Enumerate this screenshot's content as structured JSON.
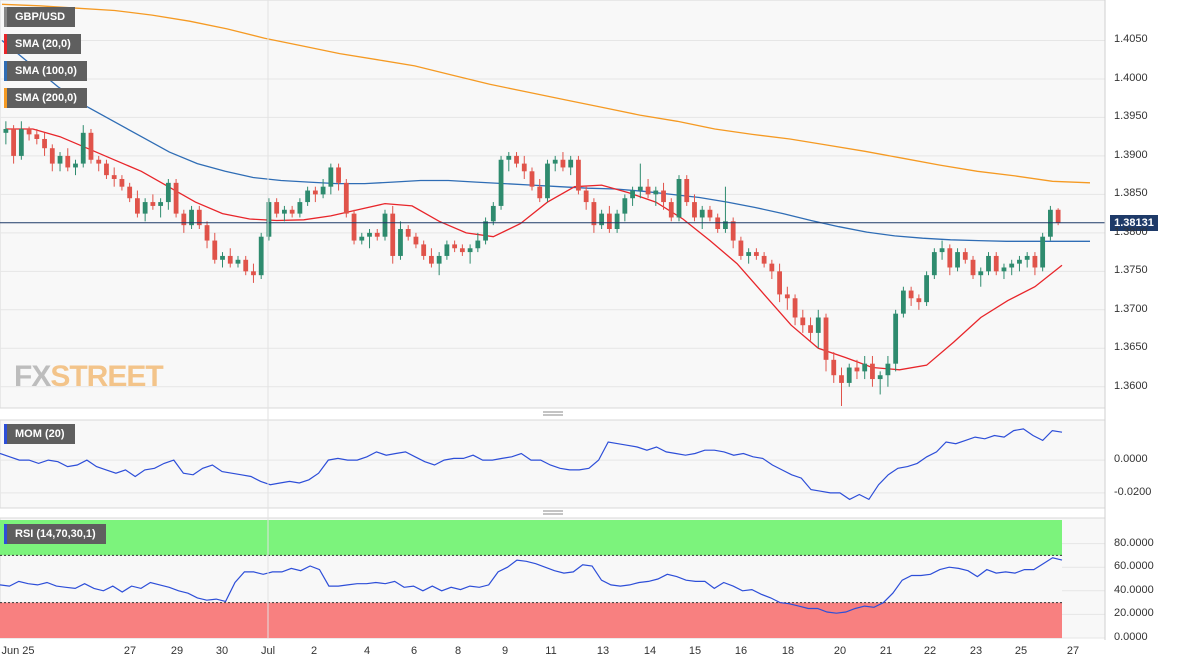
{
  "colors": {
    "bull": "#2e8b6e",
    "bear": "#e0534a",
    "sma20": "#e8252a",
    "sma100": "#2f6db5",
    "sma200": "#f59a23",
    "mom": "#2d4ed8",
    "rsi": "#2d4ed8",
    "overbought": "#7cf37c",
    "oversold": "#f88080",
    "priceLine": "#1e3a68"
  },
  "legend": {
    "symbol": "GBP/USD",
    "sma20": "SMA (20,0)",
    "sma100": "SMA (100,0)",
    "sma200": "SMA (200,0)",
    "mom": "MOM (20)",
    "rsi": "RSI (14,70,30,1)"
  },
  "watermark": {
    "part1": "FX",
    "part2": "STREET"
  },
  "last_price_label": "1.38131",
  "chart_data": [
    {
      "type": "candlestick",
      "title": "GBP/USD",
      "ylim": [
        1.3575,
        1.41
      ],
      "yticks": [
        "1.4050",
        "1.4000",
        "1.3950",
        "1.3900",
        "1.3850",
        "1.3800",
        "1.3750",
        "1.3700",
        "1.3650",
        "1.3600"
      ],
      "last_price": 1.38131,
      "x_labels": [
        "Jun 25",
        "27",
        "29",
        "30",
        "Jul",
        "2",
        "4",
        "6",
        "8",
        "9",
        "11",
        "13",
        "14",
        "15",
        "16",
        "18",
        "20",
        "21",
        "22",
        "23",
        "25",
        "27"
      ],
      "candles": [
        [
          1.393,
          1.3945,
          1.3915,
          1.3935
        ],
        [
          1.3935,
          1.394,
          1.389,
          1.39
        ],
        [
          1.39,
          1.3945,
          1.3895,
          1.3935
        ],
        [
          1.3935,
          1.3938,
          1.392,
          1.3928
        ],
        [
          1.3928,
          1.3935,
          1.3915,
          1.3922
        ],
        [
          1.3922,
          1.393,
          1.39,
          1.391
        ],
        [
          1.391,
          1.3915,
          1.388,
          1.389
        ],
        [
          1.389,
          1.3905,
          1.388,
          1.39
        ],
        [
          1.39,
          1.391,
          1.388,
          1.3885
        ],
        [
          1.3885,
          1.3895,
          1.3875,
          1.389
        ],
        [
          1.389,
          1.394,
          1.3885,
          1.393
        ],
        [
          1.393,
          1.3935,
          1.389,
          1.3895
        ],
        [
          1.3895,
          1.39,
          1.388,
          1.389
        ],
        [
          1.389,
          1.3895,
          1.387,
          1.3875
        ],
        [
          1.3875,
          1.3885,
          1.386,
          1.387
        ],
        [
          1.387,
          1.3875,
          1.3855,
          1.386
        ],
        [
          1.386,
          1.3865,
          1.384,
          1.3845
        ],
        [
          1.3845,
          1.3855,
          1.382,
          1.3825
        ],
        [
          1.3825,
          1.3845,
          1.3815,
          1.384
        ],
        [
          1.384,
          1.385,
          1.383,
          1.3835
        ],
        [
          1.3835,
          1.3845,
          1.382,
          1.384
        ],
        [
          1.384,
          1.387,
          1.383,
          1.3865
        ],
        [
          1.3865,
          1.387,
          1.382,
          1.3825
        ],
        [
          1.3825,
          1.383,
          1.38,
          1.381
        ],
        [
          1.381,
          1.3835,
          1.3805,
          1.383
        ],
        [
          1.383,
          1.3835,
          1.3805,
          1.381
        ],
        [
          1.381,
          1.3815,
          1.378,
          1.379
        ],
        [
          1.379,
          1.38,
          1.376,
          1.3765
        ],
        [
          1.3765,
          1.3775,
          1.3755,
          1.377
        ],
        [
          1.377,
          1.378,
          1.3755,
          1.376
        ],
        [
          1.376,
          1.377,
          1.3755,
          1.3765
        ],
        [
          1.3765,
          1.377,
          1.3745,
          1.375
        ],
        [
          1.375,
          1.376,
          1.3735,
          1.3745
        ],
        [
          1.3745,
          1.38,
          1.374,
          1.3795
        ],
        [
          1.3795,
          1.3845,
          1.379,
          1.384
        ],
        [
          1.384,
          1.3845,
          1.382,
          1.3825
        ],
        [
          1.3825,
          1.3835,
          1.3815,
          1.383
        ],
        [
          1.383,
          1.3835,
          1.382,
          1.3825
        ],
        [
          1.3825,
          1.3845,
          1.382,
          1.384
        ],
        [
          1.384,
          1.386,
          1.3835,
          1.3855
        ],
        [
          1.3855,
          1.386,
          1.384,
          1.385
        ],
        [
          1.385,
          1.387,
          1.3845,
          1.386
        ],
        [
          1.386,
          1.389,
          1.385,
          1.3885
        ],
        [
          1.3885,
          1.389,
          1.3855,
          1.3865
        ],
        [
          1.3865,
          1.387,
          1.382,
          1.3825
        ],
        [
          1.3825,
          1.383,
          1.3785,
          1.379
        ],
        [
          1.379,
          1.38,
          1.3785,
          1.3795
        ],
        [
          1.3795,
          1.3805,
          1.378,
          1.38
        ],
        [
          1.38,
          1.3805,
          1.379,
          1.3795
        ],
        [
          1.3795,
          1.383,
          1.379,
          1.3825
        ],
        [
          1.3825,
          1.3835,
          1.376,
          1.377
        ],
        [
          1.377,
          1.3815,
          1.3765,
          1.3805
        ],
        [
          1.3805,
          1.381,
          1.379,
          1.3795
        ],
        [
          1.3795,
          1.38,
          1.378,
          1.3785
        ],
        [
          1.3785,
          1.379,
          1.3765,
          1.377
        ],
        [
          1.377,
          1.378,
          1.3755,
          1.376
        ],
        [
          1.376,
          1.3775,
          1.3745,
          1.377
        ],
        [
          1.377,
          1.379,
          1.3765,
          1.3785
        ],
        [
          1.3785,
          1.379,
          1.3775,
          1.378
        ],
        [
          1.378,
          1.3785,
          1.377,
          1.3775
        ],
        [
          1.3775,
          1.3785,
          1.376,
          1.378
        ],
        [
          1.378,
          1.38,
          1.3775,
          1.379
        ],
        [
          1.379,
          1.382,
          1.3785,
          1.3815
        ],
        [
          1.3815,
          1.384,
          1.381,
          1.3835
        ],
        [
          1.3835,
          1.39,
          1.383,
          1.3895
        ],
        [
          1.3895,
          1.3905,
          1.388,
          1.39
        ],
        [
          1.39,
          1.3905,
          1.3885,
          1.389
        ],
        [
          1.389,
          1.39,
          1.387,
          1.388
        ],
        [
          1.388,
          1.3885,
          1.3855,
          1.386
        ],
        [
          1.386,
          1.387,
          1.384,
          1.3845
        ],
        [
          1.3845,
          1.3895,
          1.384,
          1.389
        ],
        [
          1.389,
          1.39,
          1.388,
          1.3895
        ],
        [
          1.3895,
          1.3905,
          1.388,
          1.3885
        ],
        [
          1.3885,
          1.39,
          1.3875,
          1.3895
        ],
        [
          1.3895,
          1.39,
          1.385,
          1.3855
        ],
        [
          1.3855,
          1.386,
          1.383,
          1.384
        ],
        [
          1.384,
          1.3845,
          1.38,
          1.381
        ],
        [
          1.381,
          1.383,
          1.3805,
          1.3825
        ],
        [
          1.3825,
          1.3835,
          1.38,
          1.3805
        ],
        [
          1.3805,
          1.383,
          1.38,
          1.3825
        ],
        [
          1.3825,
          1.385,
          1.3815,
          1.3845
        ],
        [
          1.3845,
          1.386,
          1.3835,
          1.3855
        ],
        [
          1.3855,
          1.389,
          1.3845,
          1.386
        ],
        [
          1.386,
          1.387,
          1.3845,
          1.385
        ],
        [
          1.385,
          1.386,
          1.3835,
          1.3855
        ],
        [
          1.3855,
          1.3865,
          1.383,
          1.384
        ],
        [
          1.384,
          1.3845,
          1.3815,
          1.382
        ],
        [
          1.382,
          1.3875,
          1.3815,
          1.387
        ],
        [
          1.387,
          1.3875,
          1.3835,
          1.384
        ],
        [
          1.384,
          1.385,
          1.3815,
          1.382
        ],
        [
          1.382,
          1.3835,
          1.3805,
          1.383
        ],
        [
          1.383,
          1.3835,
          1.3815,
          1.382
        ],
        [
          1.382,
          1.3825,
          1.38,
          1.3805
        ],
        [
          1.3805,
          1.386,
          1.38,
          1.3815
        ],
        [
          1.3815,
          1.382,
          1.378,
          1.379
        ],
        [
          1.379,
          1.3795,
          1.3765,
          1.377
        ],
        [
          1.377,
          1.378,
          1.376,
          1.3775
        ],
        [
          1.3775,
          1.378,
          1.3765,
          1.377
        ],
        [
          1.377,
          1.3775,
          1.3755,
          1.376
        ],
        [
          1.376,
          1.3765,
          1.374,
          1.375
        ],
        [
          1.375,
          1.376,
          1.371,
          1.372
        ],
        [
          1.372,
          1.373,
          1.37,
          1.3715
        ],
        [
          1.3715,
          1.372,
          1.368,
          1.369
        ],
        [
          1.369,
          1.37,
          1.367,
          1.368
        ],
        [
          1.368,
          1.369,
          1.366,
          1.367
        ],
        [
          1.367,
          1.37,
          1.365,
          1.369
        ],
        [
          1.369,
          1.3695,
          1.362,
          1.3635
        ],
        [
          1.3635,
          1.3645,
          1.3605,
          1.3615
        ],
        [
          1.3615,
          1.3625,
          1.3575,
          1.3605
        ],
        [
          1.3605,
          1.363,
          1.36,
          1.3625
        ],
        [
          1.3625,
          1.3635,
          1.361,
          1.362
        ],
        [
          1.362,
          1.364,
          1.361,
          1.363
        ],
        [
          1.363,
          1.364,
          1.36,
          1.361
        ],
        [
          1.361,
          1.362,
          1.359,
          1.3615
        ],
        [
          1.3615,
          1.364,
          1.36,
          1.363
        ],
        [
          1.363,
          1.37,
          1.362,
          1.3695
        ],
        [
          1.3695,
          1.373,
          1.369,
          1.3725
        ],
        [
          1.3725,
          1.373,
          1.3705,
          1.3715
        ],
        [
          1.3715,
          1.372,
          1.37,
          1.371
        ],
        [
          1.371,
          1.375,
          1.3705,
          1.3745
        ],
        [
          1.3745,
          1.378,
          1.374,
          1.3775
        ],
        [
          1.3775,
          1.379,
          1.3765,
          1.378
        ],
        [
          1.378,
          1.3785,
          1.3745,
          1.3755
        ],
        [
          1.3755,
          1.378,
          1.375,
          1.3775
        ],
        [
          1.3775,
          1.378,
          1.376,
          1.3765
        ],
        [
          1.3765,
          1.377,
          1.374,
          1.3745
        ],
        [
          1.3745,
          1.3755,
          1.373,
          1.375
        ],
        [
          1.375,
          1.3775,
          1.3745,
          1.377
        ],
        [
          1.377,
          1.3775,
          1.3745,
          1.375
        ],
        [
          1.375,
          1.376,
          1.374,
          1.3755
        ],
        [
          1.3755,
          1.3765,
          1.3745,
          1.376
        ],
        [
          1.376,
          1.377,
          1.375,
          1.3765
        ],
        [
          1.3765,
          1.3775,
          1.3755,
          1.377
        ],
        [
          1.377,
          1.3775,
          1.3745,
          1.3755
        ],
        [
          1.3755,
          1.38,
          1.375,
          1.3795
        ],
        [
          1.3795,
          1.3835,
          1.379,
          1.383
        ],
        [
          1.383,
          1.3832,
          1.381,
          1.3813
        ]
      ],
      "sma20": [
        1.3935,
        1.3935,
        1.3925,
        1.391,
        1.3895,
        1.388,
        1.386,
        1.384,
        1.3825,
        1.3818,
        1.3816,
        1.3817,
        1.3822,
        1.383,
        1.3838,
        1.3835,
        1.3815,
        1.38,
        1.3795,
        1.3812,
        1.384,
        1.386,
        1.3862,
        1.3852,
        1.384,
        1.3818,
        1.379,
        1.376,
        1.372,
        1.368,
        1.365,
        1.3638,
        1.3625,
        1.3622,
        1.3628,
        1.3658,
        1.369,
        1.3712,
        1.373,
        1.3758
      ],
      "sma100": [
        1.405,
        1.402,
        1.399,
        1.3965,
        1.3945,
        1.3925,
        1.3905,
        1.389,
        1.388,
        1.3872,
        1.3868,
        1.3866,
        1.3864,
        1.3864,
        1.3866,
        1.3868,
        1.3868,
        1.3866,
        1.3864,
        1.3862,
        1.386,
        1.3858,
        1.3857,
        1.3854,
        1.385,
        1.3846,
        1.384,
        1.3833,
        1.3825,
        1.3816,
        1.3808,
        1.3801,
        1.3796,
        1.3793,
        1.3791,
        1.379,
        1.3789,
        1.3789,
        1.3789,
        1.3789
      ],
      "sma200": [
        1.4097,
        1.4095,
        1.4092,
        1.4089,
        1.4083,
        1.4075,
        1.4065,
        1.4053,
        1.4043,
        1.4033,
        1.4025,
        1.4017,
        1.4005,
        1.3993,
        1.3983,
        1.3973,
        1.3963,
        1.3953,
        1.3945,
        1.3935,
        1.3928,
        1.3922,
        1.3914,
        1.3906,
        1.3897,
        1.3888,
        1.388,
        1.3874,
        1.3867,
        1.3865
      ]
    },
    {
      "type": "line",
      "title": "MOM (20)",
      "ylim": [
        -0.028,
        0.022
      ],
      "yticks": [
        "0.0000",
        "-0.0200"
      ],
      "values": [
        0.004,
        0.002,
        0.0,
        0.0,
        -0.002,
        0.0,
        -0.001,
        -0.004,
        -0.003,
        0.0,
        -0.004,
        -0.006,
        -0.008,
        -0.006,
        -0.01,
        -0.006,
        -0.005,
        -0.002,
        0.0,
        -0.008,
        -0.009,
        -0.005,
        -0.003,
        -0.007,
        -0.008,
        -0.009,
        -0.01,
        -0.013,
        -0.015,
        -0.014,
        -0.013,
        -0.014,
        -0.012,
        -0.008,
        0.0,
        0.001,
        0.0,
        0.0,
        0.002,
        0.005,
        0.003,
        0.004,
        0.005,
        0.002,
        -0.001,
        -0.003,
        0.0,
        0.001,
        0.001,
        0.003,
        0.0,
        0.0,
        0.001,
        0.002,
        0.004,
        0.0,
        0.0,
        -0.003,
        -0.005,
        -0.006,
        -0.006,
        -0.005,
        0.0,
        0.011,
        0.01,
        0.009,
        0.008,
        0.006,
        0.008,
        0.005,
        0.004,
        0.003,
        0.004,
        0.006,
        0.006,
        0.005,
        0.003,
        0.004,
        0.002,
        0.001,
        -0.003,
        -0.006,
        -0.009,
        -0.011,
        -0.018,
        -0.019,
        -0.02,
        -0.02,
        -0.024,
        -0.021,
        -0.024,
        -0.015,
        -0.009,
        -0.005,
        -0.004,
        -0.002,
        0.002,
        0.005,
        0.011,
        0.01,
        0.012,
        0.014,
        0.013,
        0.015,
        0.014,
        0.018,
        0.019,
        0.015,
        0.012,
        0.018,
        0.017
      ]
    },
    {
      "type": "line",
      "title": "RSI (14,70,30,1)",
      "ylim": [
        0,
        100
      ],
      "yticks": [
        "80.0000",
        "60.0000",
        "40.0000",
        "20.0000",
        "0.0000"
      ],
      "overbought": 70,
      "oversold": 30,
      "values": [
        45,
        44,
        48,
        46,
        45,
        47,
        44,
        43,
        42,
        46,
        42,
        40,
        44,
        39,
        44,
        42,
        47,
        45,
        43,
        40,
        38,
        34,
        32,
        33,
        31,
        47,
        56,
        56,
        54,
        56,
        56,
        59,
        57,
        61,
        58,
        44,
        44,
        45,
        46,
        46,
        47,
        46,
        48,
        43,
        44,
        40,
        44,
        40,
        43,
        41,
        44,
        43,
        45,
        56,
        60,
        66,
        65,
        63,
        60,
        57,
        55,
        56,
        62,
        61,
        49,
        45,
        44,
        45,
        47,
        48,
        50,
        54,
        52,
        49,
        48,
        48,
        42,
        47,
        44,
        40,
        41,
        37,
        34,
        30,
        29,
        27,
        25,
        25,
        22,
        21,
        22,
        25,
        27,
        26,
        30,
        38,
        49,
        53,
        53,
        54,
        58,
        60,
        59,
        57,
        52,
        58,
        55,
        56,
        55,
        58,
        58,
        63,
        68,
        66
      ]
    }
  ]
}
